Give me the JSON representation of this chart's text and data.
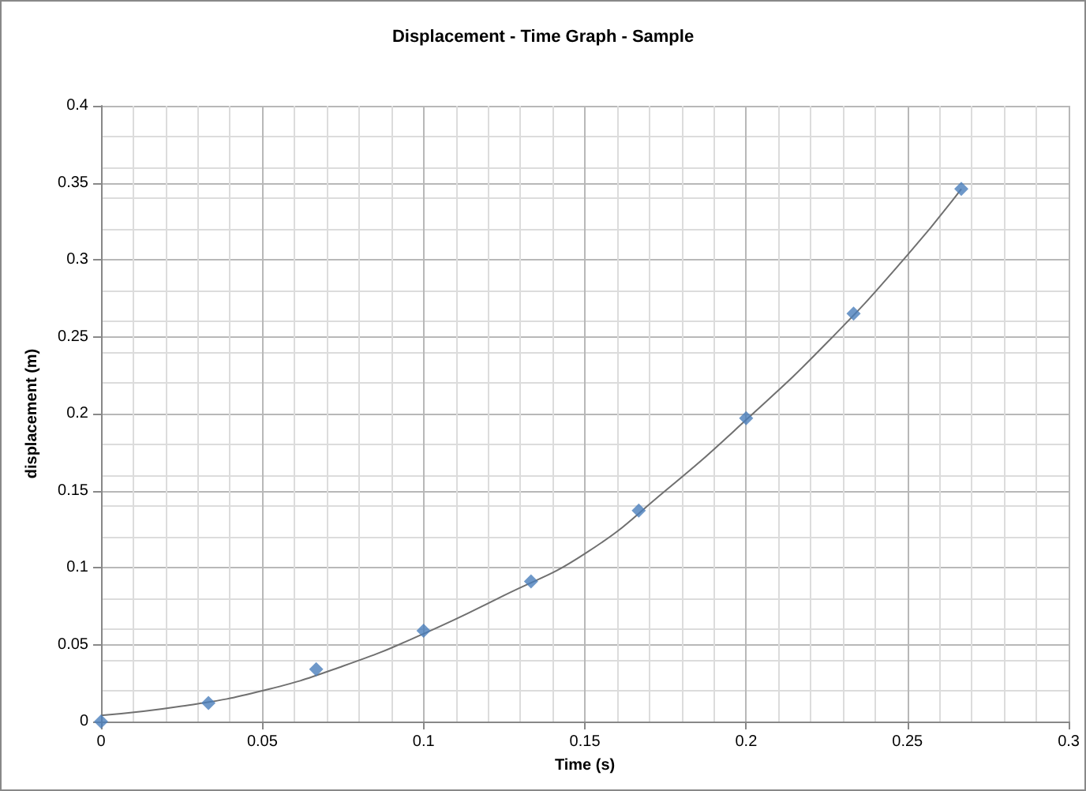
{
  "chart_data": {
    "type": "scatter",
    "title": "Displacement - Time Graph - Sample",
    "xlabel": "Time (s)",
    "ylabel": "displacement (m)",
    "series": [
      {
        "color": "#4a7ebb",
        "marker": "diamond",
        "x": [
          0,
          0.0333,
          0.0667,
          0.1,
          0.1333,
          0.1667,
          0.2,
          0.2333,
          0.2667
        ],
        "values": [
          0,
          0.012,
          0.034,
          0.059,
          0.091,
          0.137,
          0.197,
          0.265,
          0.346
        ]
      },
      {
        "type": "line",
        "color": "#707070",
        "marker": "none",
        "x": [
          0,
          0.025,
          0.05,
          0.075,
          0.1,
          0.125,
          0.15,
          0.175,
          0.2,
          0.225,
          0.25,
          0.2667
        ],
        "values": [
          0.004,
          0.01,
          0.02,
          0.036,
          0.057,
          0.082,
          0.109,
          0.15,
          0.196,
          0.246,
          0.303,
          0.346
        ]
      }
    ],
    "xlim": [
      0,
      0.3
    ],
    "xticks": [
      0,
      0.05,
      0.1,
      0.15,
      0.2,
      0.25,
      0.3
    ],
    "ylim": [
      0,
      0.4
    ],
    "yticks": [
      0,
      0.05,
      0.1,
      0.15,
      0.2,
      0.25,
      0.3,
      0.35,
      0.4
    ],
    "grid": true
  }
}
